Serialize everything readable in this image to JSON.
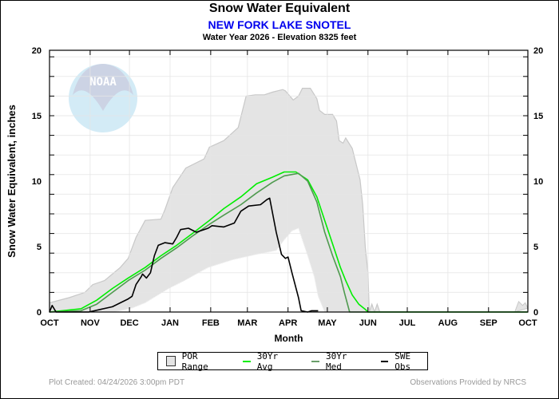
{
  "header": {
    "title": "Snow Water Equivalent",
    "station": "NEW FORK LAKE SNOTEL",
    "subtitle": "Water Year 2026 -  Elevation 8325 feet"
  },
  "footer": {
    "plot_created": "Plot Created: 04/24/2026 3:00pm PDT",
    "provider": "Observations Provided by NRCS"
  },
  "watermark": {
    "text": "NOAA",
    "icon": "noaa-logo-icon"
  },
  "colors": {
    "por_fill": "#e4e4e4",
    "por_edge": "#c8c8c8",
    "avg": "#00ee00",
    "med": "#4f9a4f",
    "obs": "#000000",
    "station": "#0000ee"
  },
  "legend": {
    "por": "POR Range",
    "avg": "30Yr Avg",
    "med": "30Yr Med",
    "obs": "SWE Obs"
  },
  "chart_data": {
    "type": "area",
    "title": "Snow Water Equivalent",
    "subtitle": "NEW FORK LAKE SNOTEL",
    "xlabel": "Month",
    "ylabel": "Snow Water Equivalent, inches",
    "x_units": "day of water year (Oct 1 = 0)",
    "xlim": [
      0,
      365
    ],
    "ylim": [
      0,
      20
    ],
    "yticks": [
      0,
      5,
      10,
      15,
      20
    ],
    "y_minor_step": 1.5,
    "month_ticks": [
      {
        "label": "OCT",
        "day": 0
      },
      {
        "label": "NOV",
        "day": 31
      },
      {
        "label": "DEC",
        "day": 61
      },
      {
        "label": "JAN",
        "day": 92
      },
      {
        "label": "FEB",
        "day": 123
      },
      {
        "label": "MAR",
        "day": 151
      },
      {
        "label": "APR",
        "day": 182
      },
      {
        "label": "MAY",
        "day": 212
      },
      {
        "label": "JUN",
        "day": 243
      },
      {
        "label": "JUL",
        "day": 273
      },
      {
        "label": "AUG",
        "day": 304
      },
      {
        "label": "SEP",
        "day": 335
      },
      {
        "label": "OCT",
        "day": 365
      }
    ],
    "grid": true,
    "legend_position": "bottom",
    "series": [
      {
        "name": "POR Range",
        "kind": "band",
        "upper": [
          [
            0,
            0.7
          ],
          [
            15,
            1.1
          ],
          [
            27,
            1.5
          ],
          [
            33,
            2.1
          ],
          [
            42,
            2.4
          ],
          [
            54,
            3.4
          ],
          [
            60,
            4.1
          ],
          [
            66,
            5.7
          ],
          [
            73,
            7.0
          ],
          [
            85,
            7.1
          ],
          [
            88,
            7.8
          ],
          [
            94,
            9.5
          ],
          [
            104,
            11.0
          ],
          [
            118,
            11.7
          ],
          [
            122,
            12.6
          ],
          [
            133,
            13.1
          ],
          [
            144,
            14.1
          ],
          [
            150,
            16.5
          ],
          [
            157,
            16.6
          ],
          [
            164,
            16.6
          ],
          [
            170,
            16.8
          ],
          [
            178,
            17.0
          ],
          [
            180,
            16.9
          ],
          [
            186,
            16.2
          ],
          [
            190,
            16.5
          ],
          [
            193,
            17.1
          ],
          [
            199,
            17.1
          ],
          [
            204,
            16.3
          ],
          [
            206,
            15.4
          ],
          [
            210,
            15.1
          ],
          [
            216,
            15.1
          ],
          [
            219,
            14.6
          ],
          [
            221,
            13.1
          ],
          [
            224,
            12.9
          ],
          [
            226,
            13.3
          ],
          [
            231,
            12.5
          ],
          [
            234,
            11.3
          ],
          [
            237,
            10.1
          ],
          [
            239,
            8.2
          ],
          [
            241,
            4.9
          ],
          [
            243,
            3.0
          ],
          [
            244,
            0
          ],
          [
            246,
            0.6
          ],
          [
            248,
            0
          ],
          [
            250,
            0.6
          ],
          [
            252,
            0
          ],
          [
            365,
            0
          ]
        ],
        "lower": [
          [
            0,
            0
          ],
          [
            50,
            0
          ],
          [
            54,
            0.1
          ],
          [
            63,
            0.3
          ],
          [
            73,
            0.7
          ],
          [
            91,
            1.8
          ],
          [
            103,
            2.4
          ],
          [
            121,
            3.4
          ],
          [
            140,
            4.0
          ],
          [
            158,
            4.4
          ],
          [
            173,
            4.7
          ],
          [
            179,
            5.5
          ],
          [
            185,
            6.2
          ],
          [
            190,
            6.4
          ],
          [
            193,
            5.5
          ],
          [
            197,
            4.3
          ],
          [
            202,
            2.7
          ],
          [
            205,
            1.2
          ],
          [
            210,
            0
          ],
          [
            365,
            0
          ]
        ],
        "late_season_bump": [
          [
            355,
            0
          ],
          [
            358,
            0.8
          ],
          [
            361,
            0.5
          ],
          [
            363,
            0.7
          ],
          [
            365,
            0.3
          ]
        ]
      },
      {
        "name": "30Yr Avg",
        "kind": "line",
        "points": [
          [
            0,
            0
          ],
          [
            24,
            0.25
          ],
          [
            36,
            0.9
          ],
          [
            48,
            1.8
          ],
          [
            60,
            2.6
          ],
          [
            73,
            3.4
          ],
          [
            85,
            4.3
          ],
          [
            97,
            5.1
          ],
          [
            109,
            6.0
          ],
          [
            122,
            7.0
          ],
          [
            133,
            7.9
          ],
          [
            146,
            8.8
          ],
          [
            158,
            9.8
          ],
          [
            170,
            10.3
          ],
          [
            179,
            10.7
          ],
          [
            188,
            10.7
          ],
          [
            197,
            10.1
          ],
          [
            204,
            8.8
          ],
          [
            210,
            7.0
          ],
          [
            216,
            5.2
          ],
          [
            222,
            3.4
          ],
          [
            226,
            2.4
          ],
          [
            231,
            1.3
          ],
          [
            236,
            0.6
          ],
          [
            241,
            0.2
          ],
          [
            243,
            0
          ],
          [
            365,
            0
          ]
        ]
      },
      {
        "name": "30Yr Med",
        "kind": "line",
        "points": [
          [
            0,
            0
          ],
          [
            24,
            0.1
          ],
          [
            36,
            0.6
          ],
          [
            48,
            1.5
          ],
          [
            60,
            2.4
          ],
          [
            73,
            3.2
          ],
          [
            85,
            4.1
          ],
          [
            97,
            4.9
          ],
          [
            109,
            5.8
          ],
          [
            122,
            6.7
          ],
          [
            133,
            7.4
          ],
          [
            146,
            8.2
          ],
          [
            158,
            9.1
          ],
          [
            170,
            9.9
          ],
          [
            179,
            10.4
          ],
          [
            190,
            10.6
          ],
          [
            197,
            10.0
          ],
          [
            204,
            8.4
          ],
          [
            210,
            6.1
          ],
          [
            216,
            4.3
          ],
          [
            222,
            2.7
          ],
          [
            225,
            1.5
          ],
          [
            229,
            0
          ],
          [
            365,
            0
          ]
        ]
      },
      {
        "name": "SWE Obs",
        "kind": "line",
        "points": [
          [
            0,
            0
          ],
          [
            2,
            0.5
          ],
          [
            5,
            0
          ],
          [
            30,
            0
          ],
          [
            39,
            0.2
          ],
          [
            48,
            0.4
          ],
          [
            54,
            0.7
          ],
          [
            60,
            1.0
          ],
          [
            63,
            1.2
          ],
          [
            66,
            2.1
          ],
          [
            70,
            2.7
          ],
          [
            71,
            2.9
          ],
          [
            74,
            2.6
          ],
          [
            77,
            3.0
          ],
          [
            80,
            4.3
          ],
          [
            83,
            5.1
          ],
          [
            88,
            5.3
          ],
          [
            94,
            5.2
          ],
          [
            97,
            5.7
          ],
          [
            100,
            6.3
          ],
          [
            106,
            6.4
          ],
          [
            112,
            6.1
          ],
          [
            121,
            6.4
          ],
          [
            124,
            6.6
          ],
          [
            133,
            6.5
          ],
          [
            141,
            6.8
          ],
          [
            146,
            7.7
          ],
          [
            152,
            8.1
          ],
          [
            161,
            8.2
          ],
          [
            166,
            8.6
          ],
          [
            168,
            8.7
          ],
          [
            173,
            6.1
          ],
          [
            177,
            4.4
          ],
          [
            180,
            4.1
          ],
          [
            182,
            4.2
          ],
          [
            185,
            3.0
          ],
          [
            190,
            1.1
          ],
          [
            192,
            0.1
          ],
          [
            197,
            0
          ],
          [
            200,
            0.1
          ],
          [
            205,
            0.1
          ]
        ]
      }
    ]
  }
}
